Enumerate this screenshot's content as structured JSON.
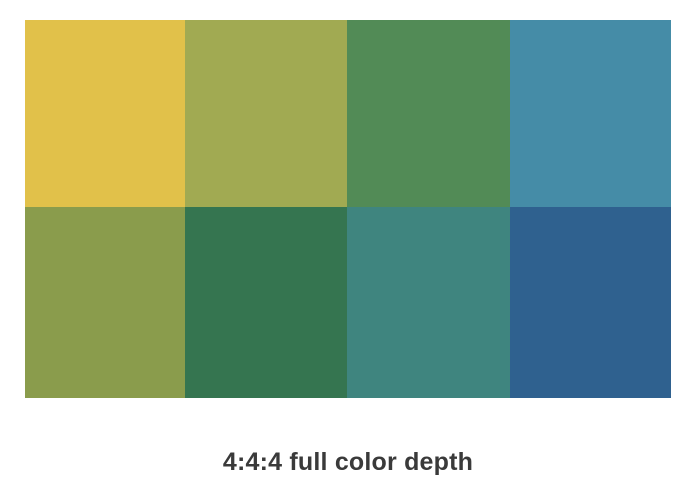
{
  "swatches": [
    {
      "row": 1,
      "col": 1,
      "color": "#e1c14a"
    },
    {
      "row": 1,
      "col": 2,
      "color": "#a1aa52"
    },
    {
      "row": 1,
      "col": 3,
      "color": "#528b56"
    },
    {
      "row": 1,
      "col": 4,
      "color": "#458ca7"
    },
    {
      "row": 2,
      "col": 1,
      "color": "#8a9c4c"
    },
    {
      "row": 2,
      "col": 2,
      "color": "#357550"
    },
    {
      "row": 2,
      "col": 3,
      "color": "#3f857f"
    },
    {
      "row": 2,
      "col": 4,
      "color": "#2f618f"
    }
  ],
  "caption": "4:4:4 full color depth"
}
